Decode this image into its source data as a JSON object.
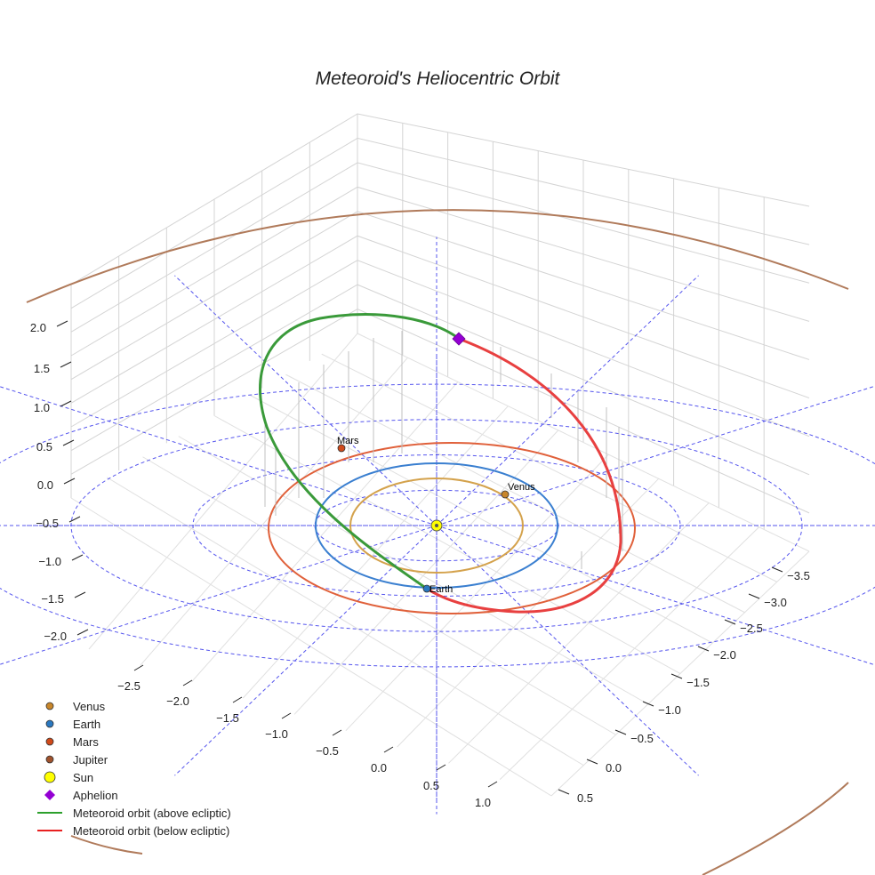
{
  "chart_data": {
    "type": "line",
    "projection": "3d",
    "title": "Meteoroid's Heliocentric Orbit",
    "x_ticks": [
      "−2.5",
      "−2.0",
      "−1.5",
      "−1.0",
      "−0.5",
      "0.0",
      "0.5",
      "1.0"
    ],
    "y_ticks": [
      "−3.5",
      "−3.0",
      "−2.5",
      "−2.0",
      "−1.5",
      "−1.0",
      "−0.5",
      "0.0",
      "0.5"
    ],
    "z_ticks": [
      "2.0",
      "1.5",
      "1.0",
      "0.5",
      "0.0",
      "−0.5",
      "−1.0",
      "−1.5",
      "−2.0"
    ],
    "zlim": [
      -2.0,
      2.0
    ],
    "planets": [
      {
        "name": "Venus",
        "radius_au": 0.72,
        "color": "#d4a24c"
      },
      {
        "name": "Earth",
        "radius_au": 1.0,
        "color": "#3a7fd0"
      },
      {
        "name": "Mars",
        "radius_au": 1.52,
        "color": "#e0603a"
      },
      {
        "name": "Jupiter",
        "radius_au": 5.2,
        "color": "#b07a5a"
      }
    ],
    "planet_labels": [
      "Venus",
      "Earth",
      "Mars"
    ],
    "sun_label": "Sun",
    "aphelion_label": "Aphelion",
    "orbit_segments": [
      {
        "name": "Meteoroid orbit (above ecliptic)",
        "color": "#3a9a3a"
      },
      {
        "name": "Meteoroid orbit (below ecliptic)",
        "color": "#e84040"
      }
    ],
    "ecliptic_rings_au": [
      1,
      2,
      3,
      4
    ],
    "legend": [
      {
        "label": "Venus",
        "marker": "circle",
        "color": "#c8862a"
      },
      {
        "label": "Earth",
        "marker": "circle",
        "color": "#2a78c0"
      },
      {
        "label": "Mars",
        "marker": "circle",
        "color": "#d04a1a"
      },
      {
        "label": "Jupiter",
        "marker": "circle",
        "color": "#a0522d"
      },
      {
        "label": "Sun",
        "marker": "circle",
        "color": "#ffff00"
      },
      {
        "label": "Aphelion",
        "marker": "diamond",
        "color": "#9400d3"
      },
      {
        "label": "Meteoroid orbit (above ecliptic)",
        "marker": "line",
        "color": "#2ca02c"
      },
      {
        "label": "Meteoroid orbit (below ecliptic)",
        "marker": "line",
        "color": "#e82020"
      }
    ],
    "legend_position": "bottom-left"
  }
}
